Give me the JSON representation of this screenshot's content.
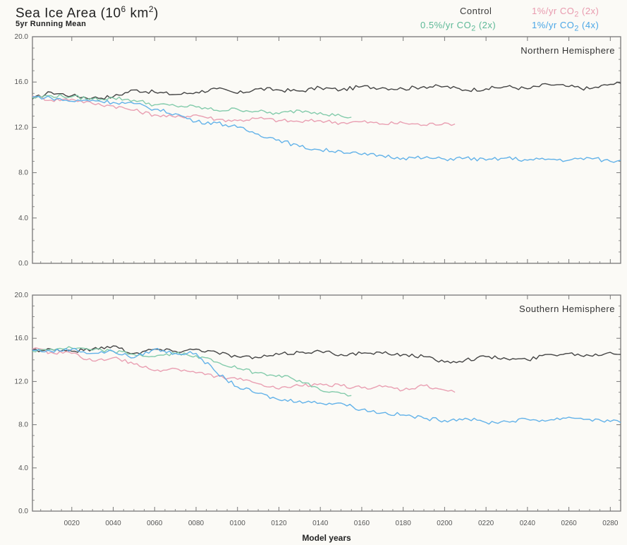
{
  "header": {
    "title_prefix": "Sea Ice Area (10",
    "title_exp": "6",
    "title_mid": " km",
    "title_exp2": "2",
    "title_suffix": ")",
    "subtitle": "5yr Running Mean"
  },
  "legend": {
    "control": "Control",
    "one_pct_2x_pre": "1%/yr CO",
    "one_pct_2x_post": " (2x)",
    "half_pct_2x_pre": "0.5%/yr CO",
    "half_pct_2x_post": " (2x)",
    "one_pct_4x_pre": "1%/yr CO",
    "one_pct_4x_post": " (4x)",
    "co2_sub": "2"
  },
  "colors": {
    "control": "#3a3a3a",
    "one_pct_2x": "#e89aae",
    "half_pct_2x": "#7cc8a6",
    "one_pct_4x": "#5aaee8",
    "frame": "#777777"
  },
  "chart_data": [
    {
      "type": "line",
      "panel_label": "Northern Hemisphere",
      "title": "Sea Ice Area (10^6 km^2)",
      "subtitle": "5yr Running Mean",
      "xlabel": "Model years",
      "ylabel": "",
      "xlim": [
        1,
        285
      ],
      "ylim": [
        0,
        20
      ],
      "x_ticks": [
        20,
        40,
        60,
        80,
        100,
        120,
        140,
        160,
        180,
        200,
        220,
        240,
        260,
        280
      ],
      "x_tick_labels": [
        "0020",
        "0040",
        "0060",
        "0080",
        "0100",
        "0120",
        "0140",
        "0160",
        "0180",
        "0200",
        "0220",
        "0240",
        "0260",
        "0280"
      ],
      "y_ticks": [
        0,
        4,
        8,
        12,
        16,
        20
      ],
      "y_tick_labels": [
        "0.0",
        "4.0",
        "8.0",
        "12.0",
        "16.0",
        "20.0"
      ],
      "grid": false,
      "legend_position": "top-right",
      "series": [
        {
          "name": "Control",
          "x": [
            1,
            10,
            20,
            30,
            40,
            50,
            60,
            70,
            80,
            90,
            100,
            110,
            120,
            130,
            140,
            150,
            160,
            170,
            180,
            190,
            200,
            210,
            220,
            230,
            240,
            250,
            260,
            270,
            280,
            285
          ],
          "y": [
            14.5,
            15.1,
            14.8,
            14.6,
            14.7,
            15.3,
            15.1,
            14.9,
            15.1,
            15.4,
            15.0,
            15.4,
            15.3,
            15.2,
            15.5,
            15.3,
            15.6,
            15.5,
            15.4,
            15.6,
            15.6,
            15.3,
            15.4,
            15.6,
            15.4,
            15.8,
            15.6,
            15.4,
            15.8,
            15.9
          ]
        },
        {
          "name": "1%/yr CO2 (2x)",
          "x": [
            1,
            10,
            20,
            30,
            40,
            50,
            60,
            70,
            80,
            90,
            100,
            110,
            120,
            130,
            140,
            150,
            160,
            170,
            180,
            190,
            200,
            205
          ],
          "y": [
            14.8,
            14.4,
            14.5,
            14.1,
            13.9,
            13.5,
            13.1,
            12.9,
            13.1,
            12.7,
            12.6,
            12.8,
            12.6,
            12.5,
            12.6,
            12.4,
            12.5,
            12.3,
            12.4,
            12.2,
            12.4,
            12.3
          ]
        },
        {
          "name": "0.5%/yr CO2 (2x)",
          "x": [
            1,
            10,
            20,
            30,
            40,
            50,
            60,
            70,
            80,
            90,
            100,
            110,
            120,
            130,
            140,
            150,
            155
          ],
          "y": [
            14.6,
            14.8,
            14.7,
            14.5,
            14.6,
            14.4,
            14.0,
            13.9,
            13.8,
            13.5,
            13.6,
            13.4,
            13.2,
            13.5,
            13.3,
            13.0,
            12.9
          ]
        },
        {
          "name": "1%/yr CO2 (4x)",
          "x": [
            1,
            10,
            20,
            30,
            40,
            50,
            60,
            70,
            80,
            90,
            100,
            110,
            120,
            130,
            140,
            150,
            160,
            170,
            180,
            190,
            200,
            210,
            220,
            230,
            240,
            250,
            260,
            270,
            280,
            285
          ],
          "y": [
            14.7,
            14.6,
            14.3,
            14.4,
            14.2,
            14.1,
            13.6,
            13.2,
            12.5,
            12.4,
            12.0,
            11.4,
            10.9,
            10.3,
            10.0,
            9.9,
            9.6,
            9.5,
            9.3,
            9.3,
            9.2,
            9.3,
            9.1,
            9.3,
            9.1,
            9.2,
            9.1,
            9.3,
            9.0,
            9.1
          ]
        }
      ]
    },
    {
      "type": "line",
      "panel_label": "Southern Hemisphere",
      "xlabel": "Model years",
      "ylabel": "",
      "xlim": [
        1,
        285
      ],
      "ylim": [
        0,
        20
      ],
      "x_ticks": [
        20,
        40,
        60,
        80,
        100,
        120,
        140,
        160,
        180,
        200,
        220,
        240,
        260,
        280
      ],
      "x_tick_labels": [
        "0020",
        "0040",
        "0060",
        "0080",
        "0100",
        "0120",
        "0140",
        "0160",
        "0180",
        "0200",
        "0220",
        "0240",
        "0260",
        "0280"
      ],
      "y_ticks": [
        0,
        4,
        8,
        12,
        16,
        20
      ],
      "y_tick_labels": [
        "0.0",
        "4.0",
        "8.0",
        "12.0",
        "16.0",
        "20.0"
      ],
      "grid": false,
      "series": [
        {
          "name": "Control",
          "x": [
            1,
            10,
            20,
            30,
            40,
            50,
            60,
            70,
            80,
            90,
            100,
            110,
            120,
            130,
            140,
            150,
            160,
            170,
            180,
            190,
            200,
            210,
            220,
            230,
            240,
            250,
            260,
            270,
            280,
            285
          ],
          "y": [
            14.9,
            15.0,
            14.8,
            15.0,
            15.3,
            14.6,
            15.0,
            14.8,
            15.0,
            14.7,
            14.3,
            14.2,
            14.5,
            14.7,
            14.8,
            14.5,
            14.6,
            14.6,
            14.5,
            14.3,
            13.8,
            14.0,
            14.3,
            14.1,
            14.0,
            14.5,
            14.6,
            14.4,
            14.7,
            14.5
          ]
        },
        {
          "name": "1%/yr CO2 (2x)",
          "x": [
            1,
            10,
            20,
            30,
            40,
            50,
            60,
            70,
            80,
            90,
            100,
            110,
            120,
            130,
            140,
            150,
            160,
            170,
            180,
            190,
            200,
            205
          ],
          "y": [
            15.0,
            14.7,
            14.6,
            13.9,
            14.2,
            13.6,
            13.0,
            13.2,
            12.8,
            12.5,
            12.2,
            11.8,
            11.3,
            11.6,
            11.8,
            11.6,
            11.4,
            11.5,
            11.2,
            11.6,
            11.2,
            11.0
          ]
        },
        {
          "name": "0.5%/yr CO2 (2x)",
          "x": [
            1,
            10,
            20,
            30,
            40,
            50,
            60,
            70,
            80,
            90,
            100,
            110,
            120,
            130,
            140,
            150,
            155
          ],
          "y": [
            14.8,
            15.0,
            15.1,
            14.9,
            14.8,
            14.5,
            14.3,
            14.6,
            14.4,
            13.8,
            13.2,
            12.8,
            12.6,
            12.1,
            11.2,
            10.9,
            10.7
          ]
        },
        {
          "name": "1%/yr CO2 (4x)",
          "x": [
            1,
            10,
            20,
            30,
            40,
            50,
            60,
            70,
            80,
            90,
            100,
            110,
            120,
            130,
            140,
            150,
            160,
            170,
            180,
            190,
            200,
            210,
            220,
            230,
            240,
            250,
            260,
            270,
            280,
            285
          ],
          "y": [
            14.9,
            14.8,
            15.0,
            14.6,
            14.8,
            14.2,
            15.0,
            14.6,
            14.6,
            12.8,
            11.5,
            10.9,
            10.3,
            10.2,
            10.0,
            10.0,
            9.4,
            9.1,
            8.9,
            8.6,
            8.4,
            8.6,
            8.2,
            8.3,
            8.5,
            8.4,
            8.7,
            8.5,
            8.3,
            8.2
          ]
        }
      ]
    }
  ]
}
